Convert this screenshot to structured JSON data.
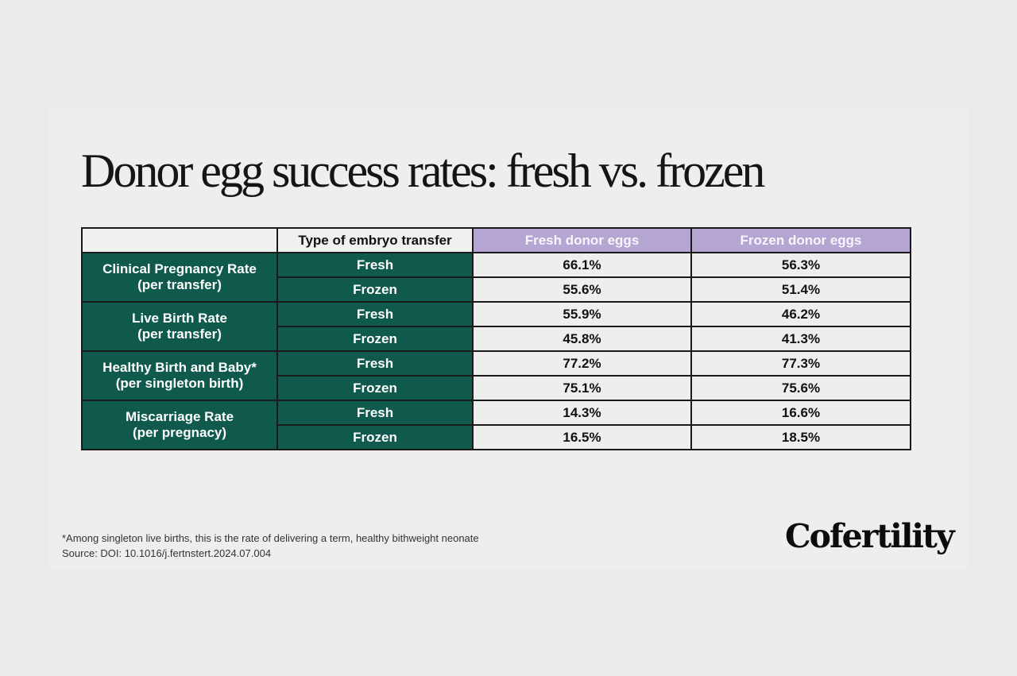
{
  "chart_data": {
    "type": "table",
    "title": "Donor egg success rates: fresh vs. frozen",
    "header": {
      "blank": "",
      "transfer_type": "Type of embryo transfer",
      "fresh_eggs": "Fresh donor eggs",
      "frozen_eggs": "Frozen donor eggs"
    },
    "rows": [
      {
        "metric": "Clinical Pregnancy Rate",
        "metric_note": "(per transfer)",
        "fresh_transfer": {
          "label": "Fresh",
          "fresh_eggs": "66.1%",
          "frozen_eggs": "56.3%"
        },
        "frozen_transfer": {
          "label": "Frozen",
          "fresh_eggs": "55.6%",
          "frozen_eggs": "51.4%"
        }
      },
      {
        "metric": "Live Birth Rate",
        "metric_note": "(per transfer)",
        "fresh_transfer": {
          "label": "Fresh",
          "fresh_eggs": "55.9%",
          "frozen_eggs": "46.2%"
        },
        "frozen_transfer": {
          "label": "Frozen",
          "fresh_eggs": "45.8%",
          "frozen_eggs": "41.3%"
        }
      },
      {
        "metric": "Healthy Birth and Baby*",
        "metric_note": "(per singleton birth)",
        "fresh_transfer": {
          "label": "Fresh",
          "fresh_eggs": "77.2%",
          "frozen_eggs": "77.3%"
        },
        "frozen_transfer": {
          "label": "Frozen",
          "fresh_eggs": "75.1%",
          "frozen_eggs": "75.6%"
        }
      },
      {
        "metric": "Miscarriage Rate",
        "metric_note": "(per pregnacy)",
        "fresh_transfer": {
          "label": "Fresh",
          "fresh_eggs": "14.3%",
          "frozen_eggs": "16.6%"
        },
        "frozen_transfer": {
          "label": "Frozen",
          "fresh_eggs": "16.5%",
          "frozen_eggs": "18.5%"
        }
      }
    ]
  },
  "footnote": {
    "line1": "*Among singleton live births, this is the rate of delivering a term, healthy bithweight neonate",
    "line2": "Source: DOI: 10.1016/j.fertnstert.2024.07.004"
  },
  "brand": {
    "logo_text": "Cofertility"
  },
  "colors": {
    "background": "#ebecea",
    "header_accent": "#b4a5d3",
    "row_header": "#0f5a4c",
    "cell": "#eeefed"
  }
}
